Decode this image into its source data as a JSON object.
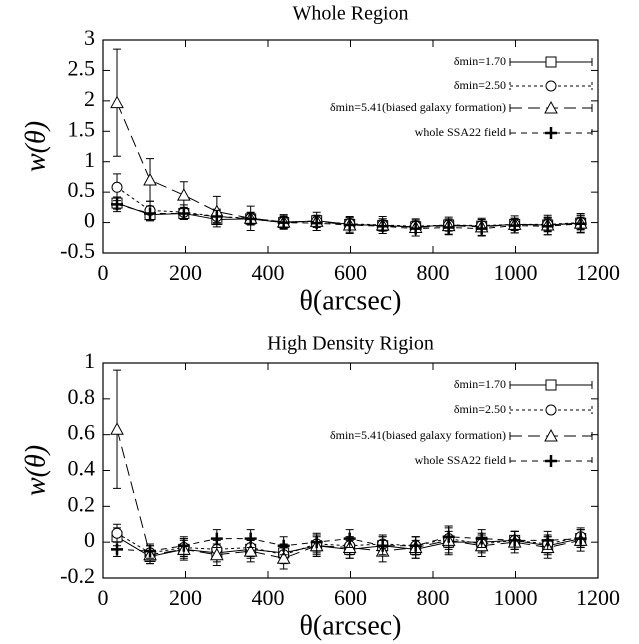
{
  "chart_data": [
    {
      "type": "line",
      "title": "Whole Region",
      "x_label": "θ(arcsec)",
      "y_label": "w(θ)",
      "x": [
        34,
        114,
        196,
        276,
        358,
        438,
        518,
        598,
        678,
        758,
        838,
        918,
        998,
        1078,
        1158
      ],
      "xlim": [
        0,
        1200
      ],
      "xticks": [
        0,
        200,
        400,
        600,
        800,
        1000,
        1200
      ],
      "ylim": [
        -0.5,
        3
      ],
      "yticks": [
        -0.5,
        0,
        0.5,
        1,
        1.5,
        2,
        2.5,
        3
      ],
      "legend": "upper right",
      "series": [
        {
          "name": "δmin=1.70",
          "color": "#000000",
          "marker": "square",
          "dash": "none",
          "values": [
            0.32,
            0.13,
            0.15,
            0.05,
            0.06,
            0.0,
            0.03,
            -0.03,
            -0.05,
            -0.07,
            -0.04,
            -0.06,
            -0.03,
            -0.04,
            -0.01
          ],
          "errors": [
            0.1,
            0.1,
            0.08,
            0.08,
            0.08,
            0.08,
            0.08,
            0.08,
            0.08,
            0.08,
            0.08,
            0.08,
            0.08,
            0.1,
            0.1
          ]
        },
        {
          "name": "δmin=2.50",
          "color": "#000000",
          "marker": "circle",
          "dash": "3,3",
          "values": [
            0.58,
            0.2,
            0.17,
            0.1,
            0.07,
            0.01,
            0.02,
            -0.02,
            -0.04,
            -0.06,
            -0.04,
            -0.05,
            -0.03,
            -0.03,
            0.0
          ],
          "errors": [
            0.22,
            0.15,
            0.12,
            0.12,
            0.1,
            0.1,
            0.1,
            0.1,
            0.1,
            0.1,
            0.1,
            0.1,
            0.1,
            0.12,
            0.12
          ]
        },
        {
          "name": "δmin=5.41(biased galaxy formation)",
          "color": "#000000",
          "marker": "triangle",
          "dash": "12,6",
          "values": [
            1.97,
            0.7,
            0.45,
            0.18,
            0.07,
            0.01,
            0.02,
            -0.04,
            -0.04,
            -0.08,
            -0.05,
            -0.07,
            -0.03,
            -0.04,
            -0.01
          ],
          "errors": [
            0.88,
            0.35,
            0.22,
            0.25,
            0.2,
            0.12,
            0.15,
            0.14,
            0.14,
            0.14,
            0.14,
            0.14,
            0.14,
            0.16,
            0.16
          ]
        },
        {
          "name": "whole SSA22 field",
          "color": "#000000",
          "marker": "plus",
          "dash": "6,5",
          "values": [
            0.3,
            0.15,
            0.15,
            0.1,
            0.06,
            0.0,
            -0.01,
            -0.04,
            -0.06,
            -0.1,
            -0.08,
            -0.1,
            -0.05,
            -0.06,
            -0.02
          ],
          "errors": [
            0.12,
            0.12,
            0.1,
            0.1,
            0.1,
            0.1,
            0.12,
            0.12,
            0.12,
            0.12,
            0.12,
            0.12,
            0.12,
            0.14,
            0.14
          ]
        }
      ]
    },
    {
      "type": "line",
      "title": "High Density Rigion",
      "x_label": "θ(arcsec)",
      "y_label": "w(θ)",
      "x": [
        34,
        114,
        196,
        276,
        358,
        438,
        518,
        598,
        678,
        758,
        838,
        918,
        998,
        1078,
        1158
      ],
      "xlim": [
        0,
        1200
      ],
      "xticks": [
        0,
        200,
        400,
        600,
        800,
        1000,
        1200
      ],
      "ylim": [
        -0.2,
        1
      ],
      "yticks": [
        -0.2,
        0,
        0.2,
        0.4,
        0.6,
        0.8,
        1
      ],
      "legend": "upper right",
      "series": [
        {
          "name": "δmin=1.70",
          "color": "#000000",
          "marker": "square",
          "dash": "none",
          "values": [
            0.03,
            -0.08,
            -0.04,
            -0.06,
            -0.04,
            -0.06,
            -0.02,
            -0.04,
            -0.02,
            -0.04,
            0.0,
            0.0,
            0.01,
            -0.02,
            0.02
          ],
          "errors": [
            0.05,
            0.04,
            0.05,
            0.05,
            0.05,
            0.05,
            0.05,
            0.05,
            0.05,
            0.05,
            0.06,
            0.05,
            0.05,
            0.05,
            0.05
          ]
        },
        {
          "name": "δmin=2.50",
          "color": "#000000",
          "marker": "circle",
          "dash": "3,3",
          "values": [
            0.05,
            -0.06,
            -0.03,
            -0.04,
            -0.03,
            -0.07,
            -0.01,
            -0.02,
            -0.01,
            -0.02,
            0.02,
            -0.01,
            0.01,
            -0.01,
            0.03
          ],
          "errors": [
            0.05,
            0.04,
            0.05,
            0.05,
            0.05,
            0.05,
            0.05,
            0.05,
            0.05,
            0.05,
            0.06,
            0.05,
            0.05,
            0.05,
            0.05
          ]
        },
        {
          "name": "δmin=5.41(biased galaxy formation)",
          "color": "#000000",
          "marker": "triangle",
          "dash": "12,6",
          "values": [
            0.63,
            -0.07,
            -0.04,
            -0.07,
            -0.05,
            -0.09,
            -0.02,
            -0.03,
            -0.05,
            -0.03,
            0.01,
            -0.02,
            0.0,
            -0.03,
            0.01
          ],
          "errors": [
            0.33,
            0.05,
            0.06,
            0.06,
            0.06,
            0.06,
            0.06,
            0.06,
            0.06,
            0.06,
            0.08,
            0.06,
            0.06,
            0.06,
            0.06
          ]
        },
        {
          "name": "whole SSA22 field",
          "color": "#000000",
          "marker": "plus",
          "dash": "6,5",
          "values": [
            -0.04,
            -0.05,
            -0.02,
            0.02,
            0.02,
            -0.02,
            0.0,
            0.02,
            -0.02,
            -0.02,
            0.03,
            0.02,
            0.01,
            0.01,
            0.02
          ],
          "errors": [
            0.04,
            0.04,
            0.05,
            0.05,
            0.05,
            0.05,
            0.05,
            0.05,
            0.05,
            0.05,
            0.06,
            0.05,
            0.05,
            0.05,
            0.05
          ]
        }
      ]
    }
  ]
}
